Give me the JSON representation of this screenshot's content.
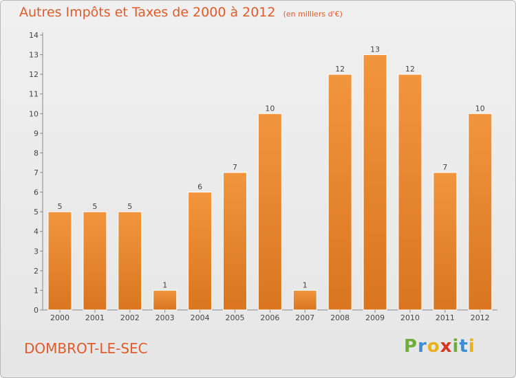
{
  "chart_data": {
    "type": "bar",
    "title": "Autres Impôts et Taxes de 2000 à 2012",
    "subtitle": "(en milliers d'€)",
    "categories": [
      "2000",
      "2001",
      "2002",
      "2003",
      "2004",
      "2005",
      "2006",
      "2007",
      "2008",
      "2009",
      "2010",
      "2011",
      "2012"
    ],
    "values": [
      5,
      5,
      5,
      1,
      6,
      7,
      10,
      1,
      12,
      13,
      12,
      7,
      10
    ],
    "ylim": [
      0,
      14
    ],
    "yticks": [
      0,
      1,
      2,
      3,
      4,
      5,
      6,
      7,
      8,
      9,
      10,
      11,
      12,
      13,
      14
    ],
    "xlabel": "",
    "ylabel": "",
    "grid": false,
    "legend": "none",
    "bar_color": "#f2953f",
    "bar_color_dark": "#d9761f"
  },
  "footer": {
    "city": "DOMBROT-LE-SEC",
    "brand_letters": [
      "P",
      "r",
      "o",
      "x",
      "i",
      "t",
      "i"
    ],
    "brand_colors": [
      "#6fae3a",
      "#3a8ed1",
      "#e8b21a",
      "#d9341f",
      "#6fae3a",
      "#3a8ed1",
      "#e8b21a"
    ]
  }
}
